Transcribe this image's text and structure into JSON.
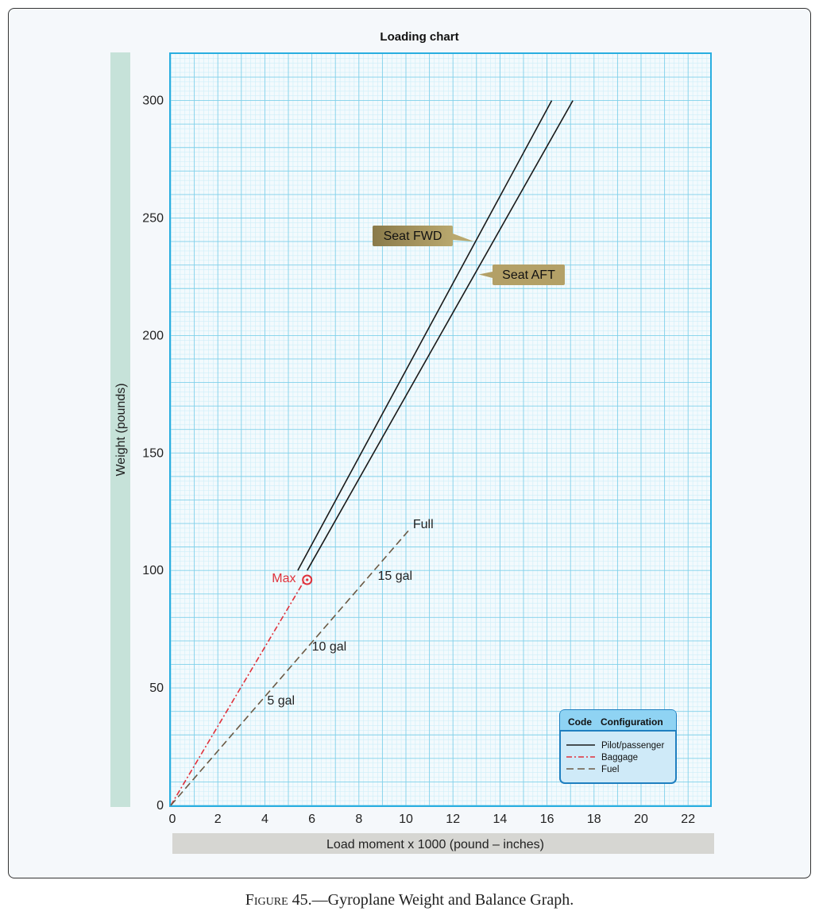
{
  "caption": {
    "figure_label": "Figure 45.",
    "text": "—Gyroplane Weight and Balance Graph."
  },
  "chart_data": {
    "type": "line",
    "title": "Loading chart",
    "xlabel": "Load moment x 1000 (pound – inches)",
    "ylabel": "Weight (pounds)",
    "xlim": [
      0,
      23
    ],
    "ylim": [
      0,
      300
    ],
    "x_ticks": [
      0,
      2,
      4,
      6,
      8,
      10,
      12,
      14,
      16,
      18,
      20,
      22
    ],
    "y_ticks": [
      0,
      50,
      100,
      150,
      200,
      250,
      300
    ],
    "grid": true,
    "series": [
      {
        "name": "Seat FWD",
        "config": "pilot",
        "color": "#1a1a1a",
        "dash": "solid",
        "points": [
          [
            5.4,
            100
          ],
          [
            16.2,
            300
          ]
        ]
      },
      {
        "name": "Seat AFT",
        "config": "pilot",
        "color": "#1a1a1a",
        "dash": "solid",
        "points": [
          [
            5.8,
            100
          ],
          [
            17.1,
            300
          ]
        ]
      },
      {
        "name": "Baggage",
        "config": "baggage",
        "color": "#e0303a",
        "dash": "dashdot",
        "points": [
          [
            0,
            0
          ],
          [
            5.7,
            96
          ]
        ]
      },
      {
        "name": "Fuel",
        "config": "fuel",
        "color": "#6b5a45",
        "dash": "dash",
        "points": [
          [
            0,
            0
          ],
          [
            10.2,
            118
          ]
        ]
      }
    ],
    "annotations": [
      {
        "text": "Full",
        "x": 10.3,
        "y": 118,
        "color": "#222"
      },
      {
        "text": "15 gal",
        "x": 8.8,
        "y": 96,
        "color": "#222"
      },
      {
        "text": "10 gal",
        "x": 6.0,
        "y": 66,
        "color": "#222"
      },
      {
        "text": "5 gal",
        "x": 4.1,
        "y": 43,
        "color": "#222"
      },
      {
        "text": "Max",
        "x": 4.3,
        "y": 95,
        "color": "#e0303a"
      }
    ],
    "max_marker": {
      "x": 5.8,
      "y": 96,
      "color": "#e0303a"
    },
    "callouts": [
      {
        "text": "Seat FWD",
        "target": [
          12.9,
          240
        ],
        "fill_left": "#8a7a4a",
        "fill_right": "#b9a86e"
      },
      {
        "text": "Seat AFT",
        "target": [
          13.1,
          226
        ],
        "fill_left": "#b3a067",
        "fill_right": "#b3a067"
      }
    ],
    "legend": {
      "position": "bottom-right",
      "header_code": "Code",
      "header_config": "Configuration",
      "items": [
        {
          "label": "Pilot/passenger",
          "color": "#1a1a1a",
          "dash": "solid"
        },
        {
          "label": "Baggage",
          "color": "#e0303a",
          "dash": "dashdot"
        },
        {
          "label": "Fuel",
          "color": "#6b5a45",
          "dash": "dash"
        }
      ]
    },
    "colors": {
      "plot_border": "#29aee0",
      "grid_major": "#7fd0ea",
      "grid_minor": "#cdeef8",
      "ylabel_band": "#c6e2d9",
      "xlabel_band": "#d6d6d2",
      "legend_fill": "#cfeaf8",
      "legend_header": "#8fd3f3",
      "legend_border": "#1f7fc0"
    }
  }
}
